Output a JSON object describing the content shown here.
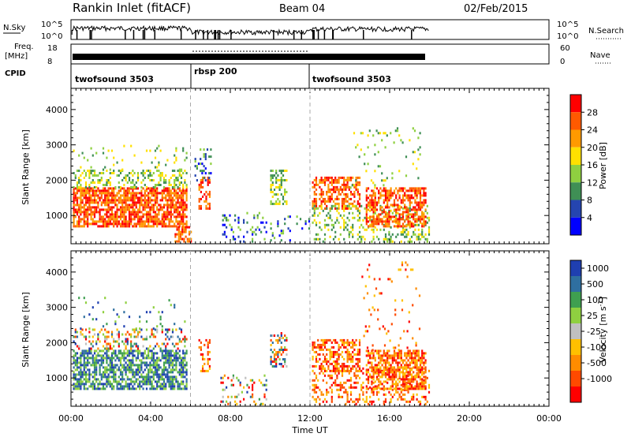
{
  "header": {
    "station": "Rankin Inlet (fitACF)",
    "beam": "Beam 04",
    "date": "02/Feb/2015"
  },
  "nsky_panel": {
    "left_label": "N.Sky",
    "right_label": "N.Search",
    "left_ticks": [
      "10^5",
      "10^0"
    ],
    "right_ticks": [
      "10^5",
      "10^0"
    ]
  },
  "freq_panel": {
    "left_label_1": "Freq.",
    "left_label_2": "[MHz]",
    "left_ticks": [
      "18",
      "8"
    ],
    "right_label": "Nave",
    "right_ticks": [
      "60",
      "0"
    ]
  },
  "cpid": {
    "label": "CPID",
    "segments": [
      {
        "name": "twofsound 3503",
        "start": 0,
        "end": 6
      },
      {
        "name": "rbsp 200",
        "start": 6,
        "end": 12
      },
      {
        "name": "twofsound 3503",
        "start": 12,
        "end": 24
      }
    ]
  },
  "colors": {
    "power_scale": [
      "#0000ff",
      "#2545b0",
      "#3f8f55",
      "#8fd040",
      "#ffe000",
      "#ff9a00",
      "#ff5a00",
      "#ff0000"
    ],
    "velocity_scale": [
      "#ff0000",
      "#ff4a00",
      "#ff8c00",
      "#ffc000",
      "#c0c0c0",
      "#8fd040",
      "#3f9f50",
      "#2f6fa0",
      "#1f3fb0"
    ]
  },
  "chart_data": [
    {
      "type": "heatmap",
      "name": "power",
      "ylabel": "Slant Range [km]",
      "yticks": [
        "1000",
        "2000",
        "3000",
        "4000"
      ],
      "ylim": [
        200,
        4600
      ],
      "xlim": [
        0,
        24
      ],
      "colorbar_label": "Power [dB]",
      "colorbar_ticks": [
        "4",
        "8",
        "12",
        "16",
        "20",
        "24",
        "28"
      ],
      "colorbar_range": [
        0,
        32
      ]
    },
    {
      "type": "heatmap",
      "name": "velocity",
      "ylabel": "Slant Range [km]",
      "yticks": [
        "1000",
        "2000",
        "3000",
        "4000"
      ],
      "ylim": [
        200,
        4600
      ],
      "xlim": [
        0,
        24
      ],
      "xlabel": "Time UT",
      "xticks": [
        "00:00",
        "04:00",
        "08:00",
        "12:00",
        "16:00",
        "20:00",
        "00:00"
      ],
      "colorbar_label_main": "Velocity",
      "colorbar_label_units": "[m s",
      "colorbar_label_exp": "-1",
      "colorbar_label_close": "]",
      "colorbar_ticks": [
        "1000",
        "500",
        "100",
        "25",
        "-25",
        "-100",
        "-500",
        "-1000"
      ]
    }
  ]
}
